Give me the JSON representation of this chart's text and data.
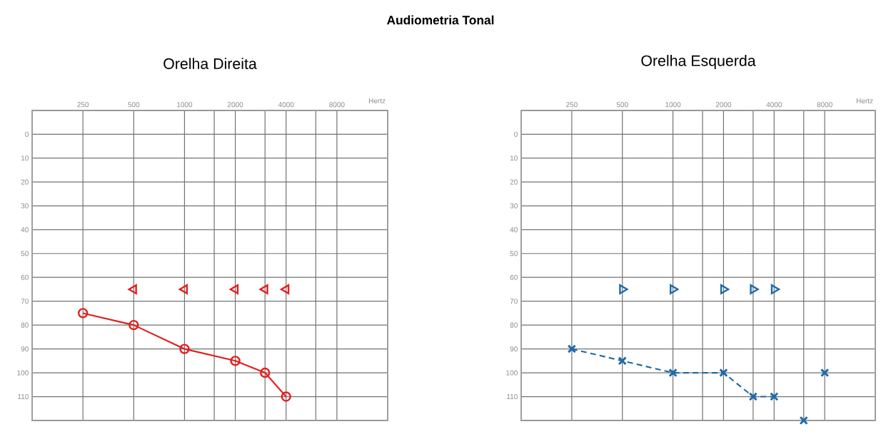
{
  "chart_data": [
    {
      "type": "line",
      "title": "Orelha Direita",
      "xlabel": "Hertz",
      "annotations": [
        "Audiometria Tonal"
      ],
      "log": "x",
      "grid": true,
      "xlim": [
        125,
        16000
      ],
      "xticks": [
        250,
        500,
        1000,
        {
          "value": 1500,
          "label": null
        },
        2000,
        {
          "value": 3000,
          "label": null
        },
        4000,
        {
          "value": 6000,
          "label": null
        },
        8000
      ],
      "ylim": [
        120,
        -10
      ],
      "yticks": [
        0,
        10,
        20,
        30,
        40,
        50,
        60,
        70,
        80,
        90,
        100,
        110
      ],
      "series": [
        {
          "color": "#e0201f",
          "marker": "circle",
          "line_style": "solid",
          "x": [
            250,
            500,
            1000,
            2000,
            3000,
            4000
          ],
          "values": [
            75,
            80,
            90,
            95,
            100,
            110
          ]
        },
        {
          "type": "scatter",
          "color": "#e0201f",
          "marker": "triangle",
          "x": [
            500,
            1000,
            2000,
            3000,
            4000
          ],
          "values": [
            65,
            65,
            65,
            65,
            65
          ]
        }
      ]
    },
    {
      "type": "line",
      "title": "Orelha Esquerda",
      "xlabel": "Hertz",
      "log": "x",
      "grid": true,
      "xlim": [
        125,
        16000
      ],
      "xticks": [
        250,
        500,
        1000,
        {
          "value": 1500,
          "label": null
        },
        2000,
        {
          "value": 3000,
          "label": null
        },
        4000,
        {
          "value": 6000,
          "label": null
        },
        8000
      ],
      "ylim": [
        120,
        -10
      ],
      "yticks": [
        0,
        10,
        20,
        30,
        40,
        50,
        60,
        70,
        80,
        90,
        100,
        110
      ],
      "series": [
        {
          "color": "#1f6aa8",
          "marker": "cross",
          "line_style": "dashed",
          "x": [
            250,
            500,
            1000,
            2000,
            3000,
            4000
          ],
          "values": [
            90,
            95,
            100,
            100,
            110,
            110
          ]
        },
        {
          "type": "scatter",
          "color": "#1f6aa8",
          "marker": "triangle",
          "x": [
            500,
            1000,
            2000,
            3000,
            4000
          ],
          "values": [
            65,
            65,
            65,
            65,
            65
          ]
        },
        {
          "type": "scatter",
          "color": "#1f6aa8",
          "marker": "cross",
          "x": [
            6000,
            8000
          ],
          "values": [
            120,
            100
          ]
        }
      ]
    }
  ]
}
